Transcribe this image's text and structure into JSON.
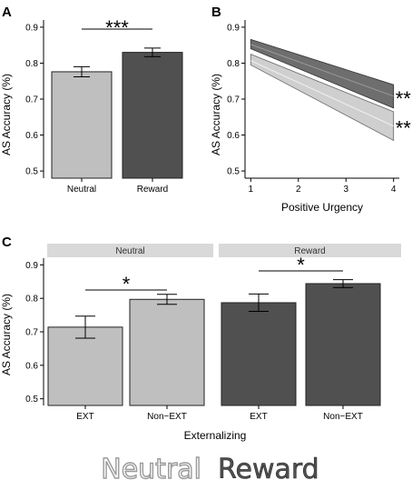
{
  "colors": {
    "neutral": "#bfbfbf",
    "reward": "#505050",
    "strip": "#d9d9d9",
    "band_reward": "#6e6e6e",
    "band_neutral": "#cfcfcf"
  },
  "legend": {
    "neutral": "Neutral",
    "reward": "Reward"
  },
  "chart_data": [
    {
      "panel": "A",
      "type": "bar",
      "categories": [
        "Neutral",
        "Reward"
      ],
      "values": [
        0.776,
        0.83
      ],
      "error": [
        0.014,
        0.012
      ],
      "ylabel": "AS Accuracy (%)",
      "xlabel": "",
      "ylim": [
        0.48,
        0.92
      ],
      "yticks": [
        "0.5",
        "0.6",
        "0.7",
        "0.8",
        "0.9"
      ],
      "annotation": "***",
      "grid": false
    },
    {
      "panel": "B",
      "type": "area",
      "xlabel": "Positive Urgency",
      "ylabel": "AS Accuracy (%)",
      "xlim": [
        0.88,
        4.12
      ],
      "ylim": [
        0.48,
        0.92
      ],
      "xticks": [
        "1",
        "2",
        "3",
        "4"
      ],
      "yticks": [
        "0.5",
        "0.6",
        "0.7",
        "0.8",
        "0.9"
      ],
      "series": [
        {
          "x": [
            1,
            4
          ],
          "mean": [
            0.852,
            0.708
          ],
          "lower": [
            0.84,
            0.675
          ],
          "upper": [
            0.866,
            0.74
          ],
          "annotation": "**"
        },
        {
          "x": [
            1,
            4
          ],
          "mean": [
            0.807,
            0.625
          ],
          "lower": [
            0.795,
            0.585
          ],
          "upper": [
            0.825,
            0.665
          ],
          "annotation": "**"
        }
      ],
      "grid": false
    },
    {
      "panel": "C",
      "type": "bar",
      "xlabel": "Externalizing",
      "ylabel": "AS Accuracy (%)",
      "ylim": [
        0.48,
        0.92
      ],
      "yticks": [
        "0.5",
        "0.6",
        "0.7",
        "0.8",
        "0.9"
      ],
      "facets": [
        {
          "strip": "Neutral",
          "categories": [
            "EXT",
            "Non−EXT"
          ],
          "values": [
            0.714,
            0.797
          ],
          "error": [
            0.033,
            0.015
          ],
          "annotation": "*"
        },
        {
          "strip": "Reward",
          "categories": [
            "EXT",
            "Non−EXT"
          ],
          "values": [
            0.787,
            0.844
          ],
          "error": [
            0.026,
            0.012
          ],
          "annotation": "*"
        }
      ],
      "grid": false
    }
  ]
}
